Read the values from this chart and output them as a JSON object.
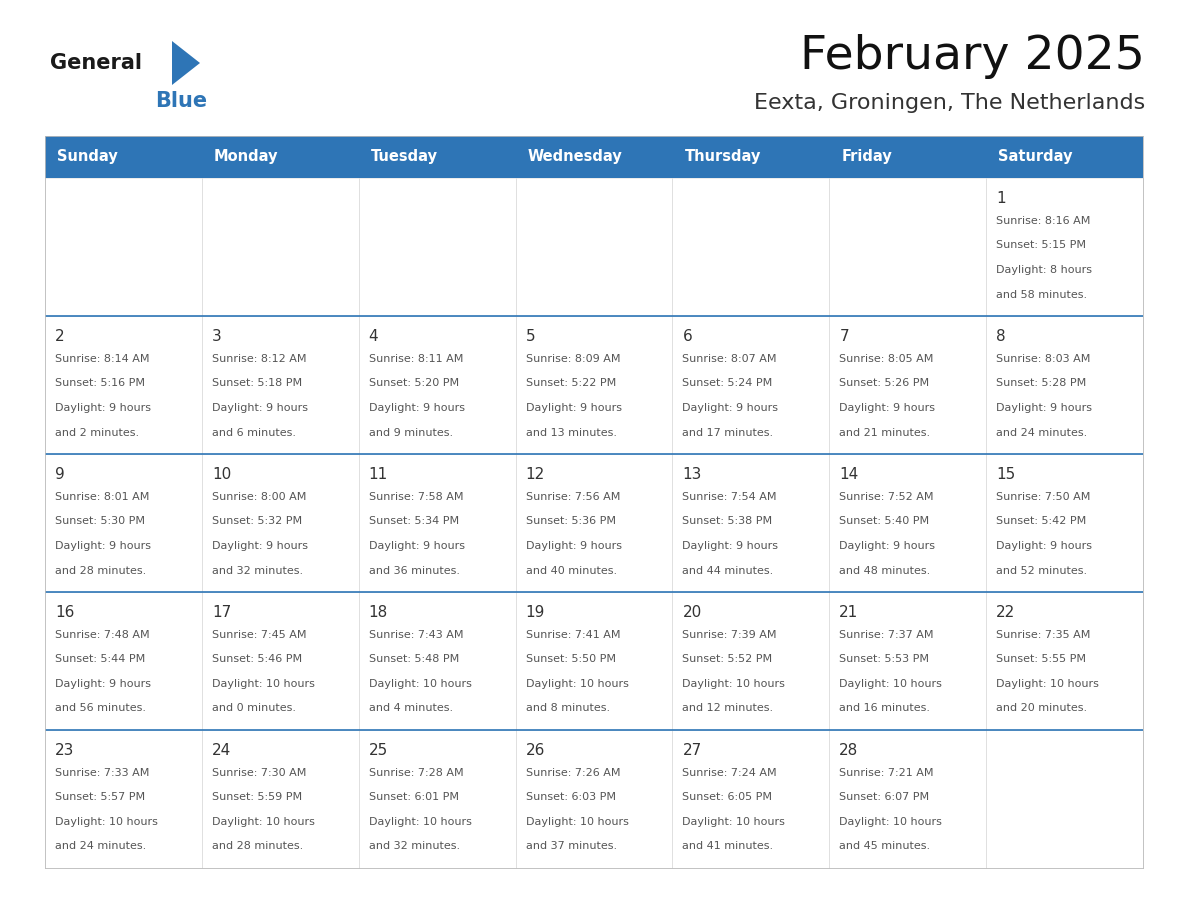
{
  "title": "February 2025",
  "subtitle": "Eexta, Groningen, The Netherlands",
  "header_bg_color": "#2E75B6",
  "header_text_color": "#FFFFFF",
  "cell_bg_white": "#FFFFFF",
  "cell_bg_gray": "#F5F5F5",
  "text_color_dark": "#333333",
  "text_color_cell": "#555555",
  "days_of_week": [
    "Sunday",
    "Monday",
    "Tuesday",
    "Wednesday",
    "Thursday",
    "Friday",
    "Saturday"
  ],
  "calendar_data": [
    [
      {
        "day": "",
        "sunrise": "",
        "sunset": "",
        "daylight": ""
      },
      {
        "day": "",
        "sunrise": "",
        "sunset": "",
        "daylight": ""
      },
      {
        "day": "",
        "sunrise": "",
        "sunset": "",
        "daylight": ""
      },
      {
        "day": "",
        "sunrise": "",
        "sunset": "",
        "daylight": ""
      },
      {
        "day": "",
        "sunrise": "",
        "sunset": "",
        "daylight": ""
      },
      {
        "day": "",
        "sunrise": "",
        "sunset": "",
        "daylight": ""
      },
      {
        "day": "1",
        "sunrise": "8:16 AM",
        "sunset": "5:15 PM",
        "daylight": "8 hours and 58 minutes."
      }
    ],
    [
      {
        "day": "2",
        "sunrise": "8:14 AM",
        "sunset": "5:16 PM",
        "daylight": "9 hours and 2 minutes."
      },
      {
        "day": "3",
        "sunrise": "8:12 AM",
        "sunset": "5:18 PM",
        "daylight": "9 hours and 6 minutes."
      },
      {
        "day": "4",
        "sunrise": "8:11 AM",
        "sunset": "5:20 PM",
        "daylight": "9 hours and 9 minutes."
      },
      {
        "day": "5",
        "sunrise": "8:09 AM",
        "sunset": "5:22 PM",
        "daylight": "9 hours and 13 minutes."
      },
      {
        "day": "6",
        "sunrise": "8:07 AM",
        "sunset": "5:24 PM",
        "daylight": "9 hours and 17 minutes."
      },
      {
        "day": "7",
        "sunrise": "8:05 AM",
        "sunset": "5:26 PM",
        "daylight": "9 hours and 21 minutes."
      },
      {
        "day": "8",
        "sunrise": "8:03 AM",
        "sunset": "5:28 PM",
        "daylight": "9 hours and 24 minutes."
      }
    ],
    [
      {
        "day": "9",
        "sunrise": "8:01 AM",
        "sunset": "5:30 PM",
        "daylight": "9 hours and 28 minutes."
      },
      {
        "day": "10",
        "sunrise": "8:00 AM",
        "sunset": "5:32 PM",
        "daylight": "9 hours and 32 minutes."
      },
      {
        "day": "11",
        "sunrise": "7:58 AM",
        "sunset": "5:34 PM",
        "daylight": "9 hours and 36 minutes."
      },
      {
        "day": "12",
        "sunrise": "7:56 AM",
        "sunset": "5:36 PM",
        "daylight": "9 hours and 40 minutes."
      },
      {
        "day": "13",
        "sunrise": "7:54 AM",
        "sunset": "5:38 PM",
        "daylight": "9 hours and 44 minutes."
      },
      {
        "day": "14",
        "sunrise": "7:52 AM",
        "sunset": "5:40 PM",
        "daylight": "9 hours and 48 minutes."
      },
      {
        "day": "15",
        "sunrise": "7:50 AM",
        "sunset": "5:42 PM",
        "daylight": "9 hours and 52 minutes."
      }
    ],
    [
      {
        "day": "16",
        "sunrise": "7:48 AM",
        "sunset": "5:44 PM",
        "daylight": "9 hours and 56 minutes."
      },
      {
        "day": "17",
        "sunrise": "7:45 AM",
        "sunset": "5:46 PM",
        "daylight": "10 hours and 0 minutes."
      },
      {
        "day": "18",
        "sunrise": "7:43 AM",
        "sunset": "5:48 PM",
        "daylight": "10 hours and 4 minutes."
      },
      {
        "day": "19",
        "sunrise": "7:41 AM",
        "sunset": "5:50 PM",
        "daylight": "10 hours and 8 minutes."
      },
      {
        "day": "20",
        "sunrise": "7:39 AM",
        "sunset": "5:52 PM",
        "daylight": "10 hours and 12 minutes."
      },
      {
        "day": "21",
        "sunrise": "7:37 AM",
        "sunset": "5:53 PM",
        "daylight": "10 hours and 16 minutes."
      },
      {
        "day": "22",
        "sunrise": "7:35 AM",
        "sunset": "5:55 PM",
        "daylight": "10 hours and 20 minutes."
      }
    ],
    [
      {
        "day": "23",
        "sunrise": "7:33 AM",
        "sunset": "5:57 PM",
        "daylight": "10 hours and 24 minutes."
      },
      {
        "day": "24",
        "sunrise": "7:30 AM",
        "sunset": "5:59 PM",
        "daylight": "10 hours and 28 minutes."
      },
      {
        "day": "25",
        "sunrise": "7:28 AM",
        "sunset": "6:01 PM",
        "daylight": "10 hours and 32 minutes."
      },
      {
        "day": "26",
        "sunrise": "7:26 AM",
        "sunset": "6:03 PM",
        "daylight": "10 hours and 37 minutes."
      },
      {
        "day": "27",
        "sunrise": "7:24 AM",
        "sunset": "6:05 PM",
        "daylight": "10 hours and 41 minutes."
      },
      {
        "day": "28",
        "sunrise": "7:21 AM",
        "sunset": "6:07 PM",
        "daylight": "10 hours and 45 minutes."
      },
      {
        "day": "",
        "sunrise": "",
        "sunset": "",
        "daylight": ""
      }
    ]
  ]
}
